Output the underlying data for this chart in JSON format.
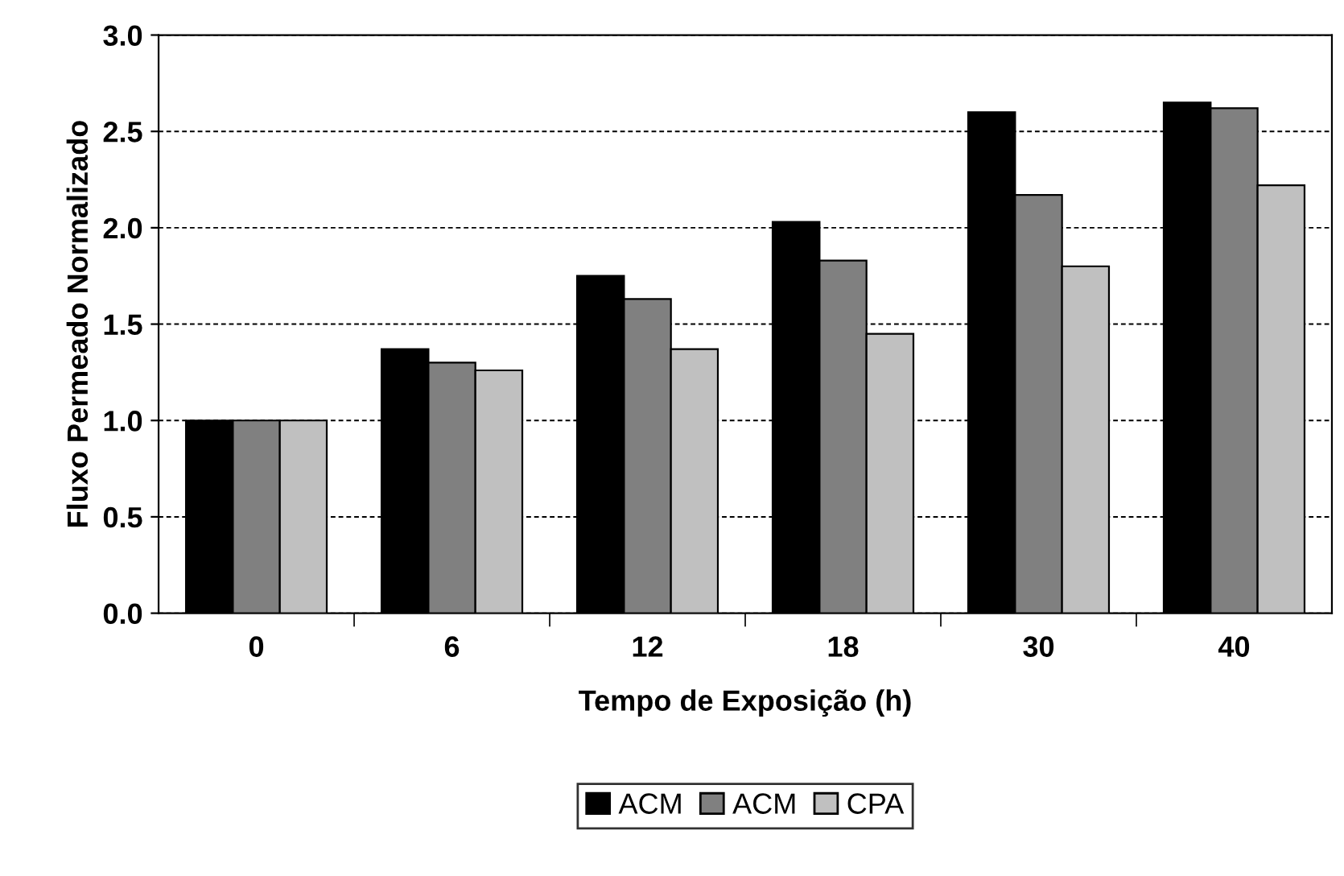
{
  "chart_data": {
    "type": "bar",
    "xlabel": "Tempo de Exposição (h)",
    "ylabel": "Fluxo Permeado Normalizado",
    "categories": [
      "0",
      "6",
      "12",
      "18",
      "30",
      "40"
    ],
    "series": [
      {
        "name": "ACM",
        "color": "#000000",
        "values": [
          1.0,
          1.37,
          1.75,
          2.03,
          2.6,
          2.65
        ]
      },
      {
        "name": "ACM",
        "color": "#808080",
        "values": [
          1.0,
          1.3,
          1.63,
          1.83,
          2.17,
          2.62
        ]
      },
      {
        "name": "CPA",
        "color": "#c0c0c0",
        "values": [
          1.0,
          1.26,
          1.37,
          1.45,
          1.8,
          2.22
        ]
      }
    ],
    "ylim": [
      0,
      3.0
    ],
    "yticks": [
      {
        "value": 0,
        "label": "0.0"
      },
      {
        "value": 0.5,
        "label": "0.5"
      },
      {
        "value": 1.0,
        "label": "1.0"
      },
      {
        "value": 1.5,
        "label": "1.5"
      },
      {
        "value": 2.0,
        "label": "2.0"
      },
      {
        "value": 2.5,
        "label": "2.5"
      },
      {
        "value": 3.0,
        "label": "3.0"
      }
    ],
    "grid": "y",
    "legend": "bottom"
  }
}
